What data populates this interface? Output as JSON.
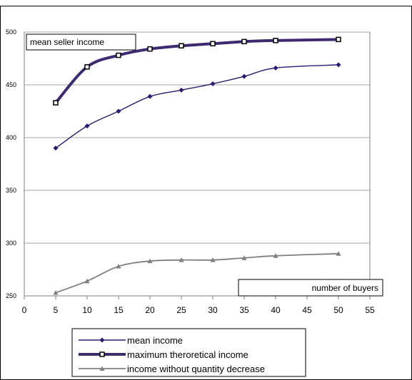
{
  "chart_data": {
    "type": "line",
    "ylabel": "mean seller income",
    "xlabel": "number of buyers",
    "xlim": [
      0,
      55
    ],
    "ylim": [
      250,
      500
    ],
    "x_ticks": [
      "0",
      "5",
      "10",
      "15",
      "20",
      "25",
      "30",
      "35",
      "40",
      "45",
      "50",
      "55"
    ],
    "y_ticks": [
      "250",
      "300",
      "350",
      "400",
      "450",
      "500"
    ],
    "grid": "horizontal",
    "legend_position": "bottom",
    "x": [
      5,
      10,
      15,
      20,
      25,
      30,
      35,
      40,
      50
    ],
    "series": [
      {
        "name": "mean income",
        "values": [
          390,
          411,
          425,
          439,
          445,
          451,
          458,
          466,
          469
        ],
        "color": "#2e1a6e",
        "marker": "diamond"
      },
      {
        "name": "maximum theroretical income",
        "values": [
          433,
          467,
          478,
          484,
          487,
          489,
          491,
          492,
          493
        ],
        "color": "#3d2a70",
        "marker": "square"
      },
      {
        "name": "income without quantity decrease",
        "values": [
          253,
          264,
          278,
          283,
          284,
          284,
          286,
          288,
          290
        ],
        "color": "#7f7f7f",
        "marker": "triangle"
      }
    ]
  }
}
